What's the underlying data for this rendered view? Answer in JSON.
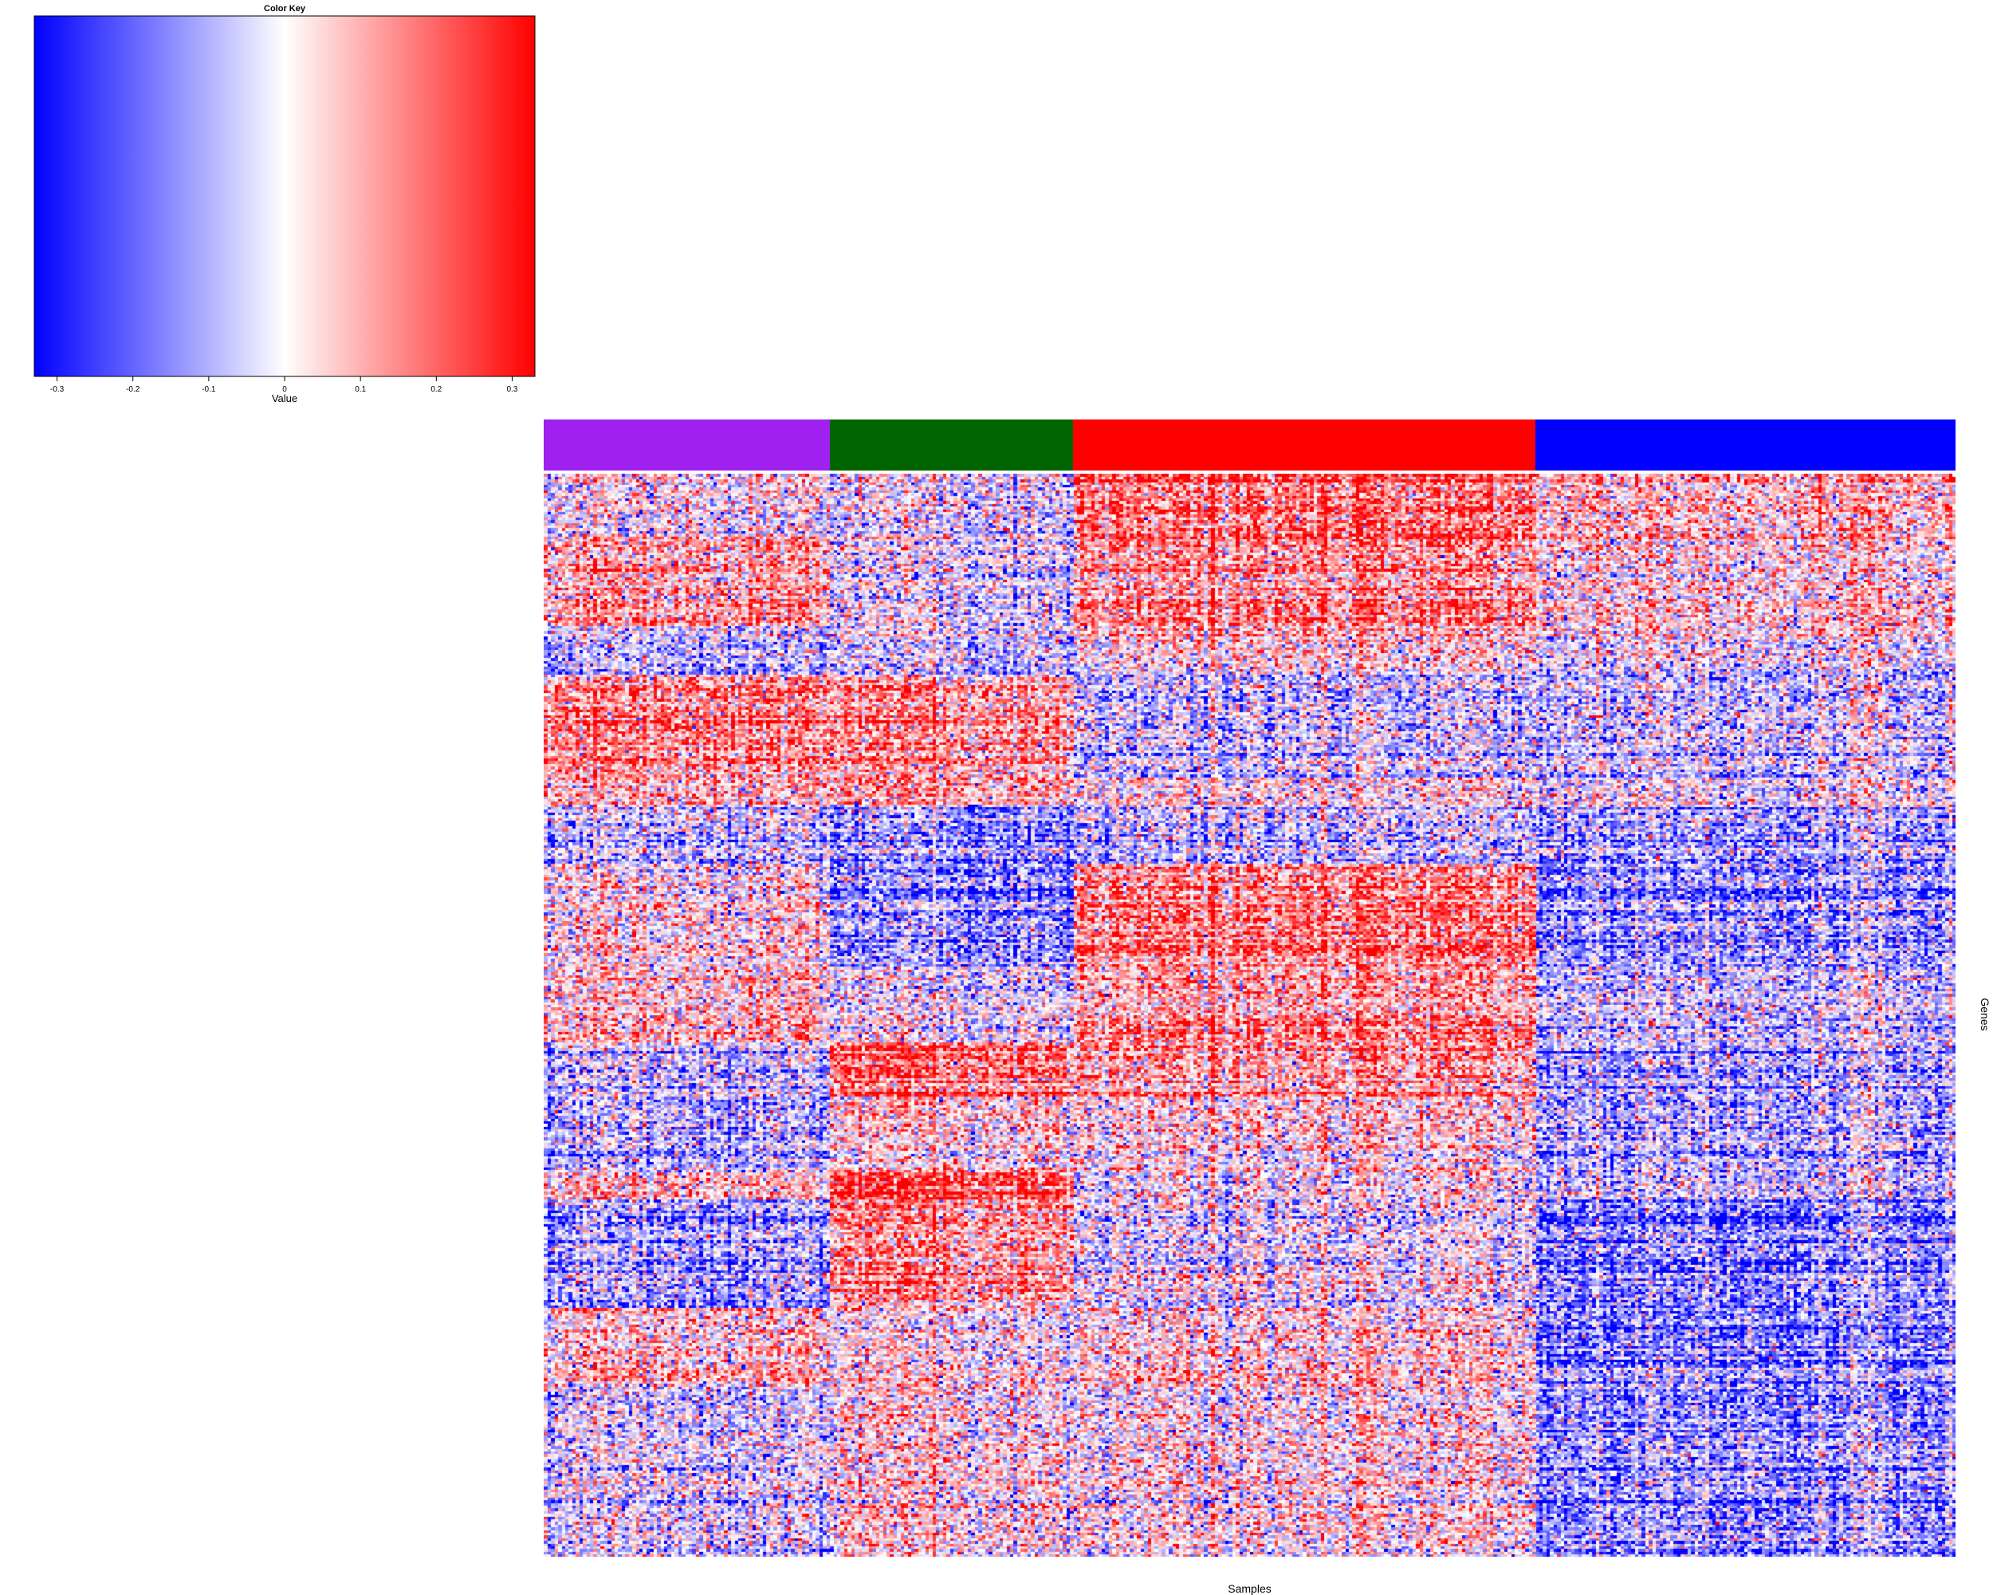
{
  "chart_data": {
    "type": "heatmap",
    "title": "",
    "xlabel": "Samples",
    "ylabel": "Genes",
    "color_key": {
      "title": "Color Key",
      "label": "Value",
      "range": [
        -0.33,
        0.33
      ],
      "ticks": [
        "-0.3",
        "-0.2",
        "-0.1",
        "0",
        "0.1",
        "0.2",
        "0.3"
      ],
      "tick_values": [
        -0.3,
        -0.2,
        -0.1,
        0,
        0.1,
        0.2,
        0.3
      ],
      "low_color": "#0000ff",
      "mid_color": "#ffffff",
      "high_color": "#ff0000"
    },
    "sample_groups": [
      {
        "color": "#a020f0",
        "n_samples": 81
      },
      {
        "color": "#006400",
        "n_samples": 69
      },
      {
        "color": "#ff0000",
        "n_samples": 131
      },
      {
        "color": "#0000ff",
        "n_samples": 119
      }
    ],
    "n_genes": 400,
    "gene_blocks": [
      {
        "rows": 24,
        "means": [
          -0.02,
          -0.05,
          0.15,
          0.05
        ]
      },
      {
        "rows": 32,
        "means": [
          0.1,
          -0.03,
          0.14,
          0.04
        ]
      },
      {
        "rows": 18,
        "means": [
          -0.1,
          -0.06,
          0.04,
          -0.02
        ]
      },
      {
        "rows": 38,
        "means": [
          0.14,
          0.12,
          -0.06,
          -0.05
        ]
      },
      {
        "rows": 10,
        "means": [
          0.08,
          0.1,
          0.02,
          -0.02
        ]
      },
      {
        "rows": 22,
        "means": [
          -0.06,
          -0.12,
          -0.06,
          -0.1
        ]
      },
      {
        "rows": 38,
        "means": [
          0.02,
          -0.15,
          0.16,
          -0.14
        ]
      },
      {
        "rows": 28,
        "means": [
          0.07,
          -0.02,
          0.13,
          -0.06
        ]
      },
      {
        "rows": 20,
        "means": [
          -0.06,
          0.18,
          0.12,
          -0.09
        ]
      },
      {
        "rows": 28,
        "means": [
          -0.1,
          0.04,
          0.03,
          -0.1
        ]
      },
      {
        "rows": 10,
        "means": [
          0.04,
          0.2,
          -0.02,
          -0.06
        ]
      },
      {
        "rows": 40,
        "means": [
          -0.12,
          0.12,
          -0.02,
          -0.15
        ]
      },
      {
        "rows": 28,
        "means": [
          0.06,
          0.02,
          0.05,
          -0.16
        ]
      },
      {
        "rows": 64,
        "means": [
          -0.05,
          0.03,
          0.02,
          -0.14
        ]
      }
    ],
    "random_seed": 20240611
  }
}
